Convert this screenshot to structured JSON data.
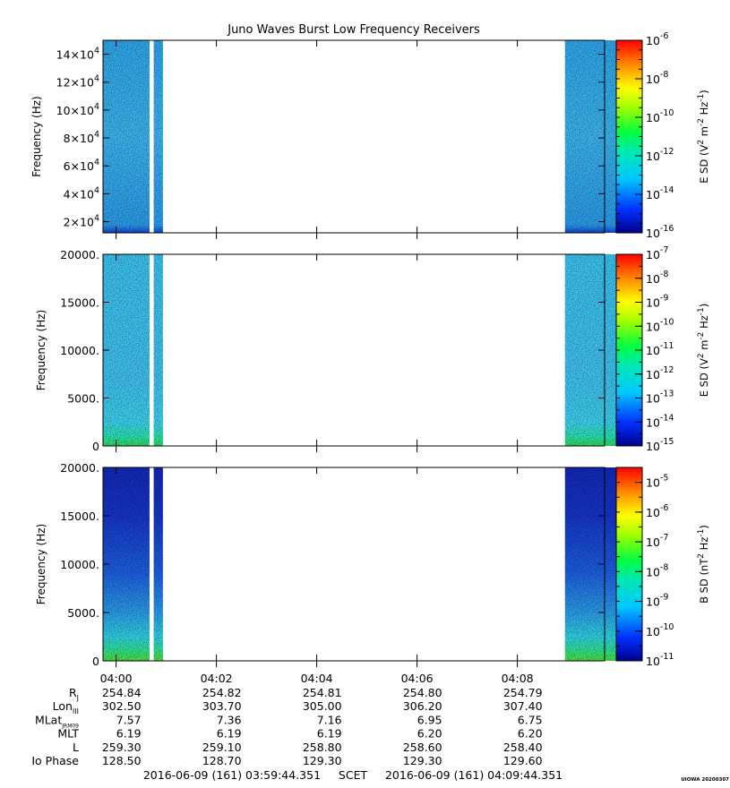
{
  "chart_data": {
    "type": "heatmap",
    "title": "Juno Waves Burst Low Frequency Receivers",
    "x_ticks": [
      "04:00",
      "04:02",
      "04:04",
      "04:06",
      "04:08"
    ],
    "panels": [
      {
        "ylabel": "Frequency (Hz)",
        "y_ticks": [
          "2×10^4",
          "4×10^4",
          "6×10^4",
          "8×10^4",
          "10×10^4",
          "12×10^4",
          "14×10^4"
        ],
        "y_tick_values": [
          20000,
          40000,
          60000,
          80000,
          100000,
          120000,
          140000
        ],
        "ylim": [
          12000,
          150000
        ],
        "colorbar_label": "E SD (V^2 m^-2 Hz^-1)",
        "colorbar_exponents": [
          -6,
          -8,
          -10,
          -12,
          -14,
          -16
        ],
        "colorbar_range": [
          -16,
          -6
        ],
        "data_windows_time": [
          [
            "03:59:44",
            "04:00:40"
          ],
          [
            "04:00:45",
            "04:00:56"
          ],
          [
            "04:08:57",
            "04:09:58"
          ]
        ]
      },
      {
        "ylabel": "Frequency (Hz)",
        "y_ticks": [
          "0",
          "5000.",
          "10000.",
          "15000.",
          "20000."
        ],
        "y_tick_values": [
          0,
          5000,
          10000,
          15000,
          20000
        ],
        "ylim": [
          0,
          20000
        ],
        "colorbar_label": "E SD (V^2 m^-2 Hz^-1)",
        "colorbar_exponents": [
          -7,
          -8,
          -9,
          -10,
          -11,
          -12,
          -13,
          -14,
          -15
        ],
        "colorbar_range": [
          -15,
          -7
        ],
        "data_windows_time": [
          [
            "03:59:44",
            "04:00:40"
          ],
          [
            "04:00:45",
            "04:00:56"
          ],
          [
            "04:08:57",
            "04:09:58"
          ]
        ]
      },
      {
        "ylabel": "Frequency (Hz)",
        "y_ticks": [
          "0",
          "5000.",
          "10000.",
          "15000.",
          "20000."
        ],
        "y_tick_values": [
          0,
          5000,
          10000,
          15000,
          20000
        ],
        "ylim": [
          0,
          20000
        ],
        "colorbar_label": "B SD (nT^2 Hz^-1)",
        "colorbar_exponents": [
          -5,
          -6,
          -7,
          -8,
          -9,
          -10,
          -11
        ],
        "colorbar_range": [
          -11,
          -4.5
        ],
        "data_windows_time": [
          [
            "03:59:44",
            "04:00:40"
          ],
          [
            "04:00:45",
            "04:00:56"
          ],
          [
            "04:08:57",
            "04:09:58"
          ]
        ]
      }
    ],
    "ephemeris": {
      "rows": [
        {
          "label": "R",
          "sub": "J",
          "values": [
            "254.84",
            "254.82",
            "254.81",
            "254.80",
            "254.79"
          ]
        },
        {
          "label": "Lon",
          "sub": "III",
          "values": [
            "302.50",
            "303.70",
            "305.00",
            "306.20",
            "307.40"
          ]
        },
        {
          "label": "MLat",
          "sub": "JRM09",
          "values": [
            "7.57",
            "7.36",
            "7.16",
            "6.95",
            "6.75"
          ]
        },
        {
          "label": "MLT",
          "sub": "",
          "values": [
            "6.19",
            "6.19",
            "6.19",
            "6.20",
            "6.20"
          ]
        },
        {
          "label": "L",
          "sub": "",
          "values": [
            "259.30",
            "259.10",
            "258.80",
            "258.60",
            "258.40"
          ]
        },
        {
          "label": "Io Phase",
          "sub": "",
          "values": [
            "128.50",
            "128.70",
            "129.30",
            "129.30",
            "129.60"
          ]
        }
      ]
    },
    "time_range_label": "2016-06-09 (161) 03:59:44.351     SCET     2016-06-09 (161) 04:09:44.351",
    "credit": "UIOWA 20200307"
  }
}
